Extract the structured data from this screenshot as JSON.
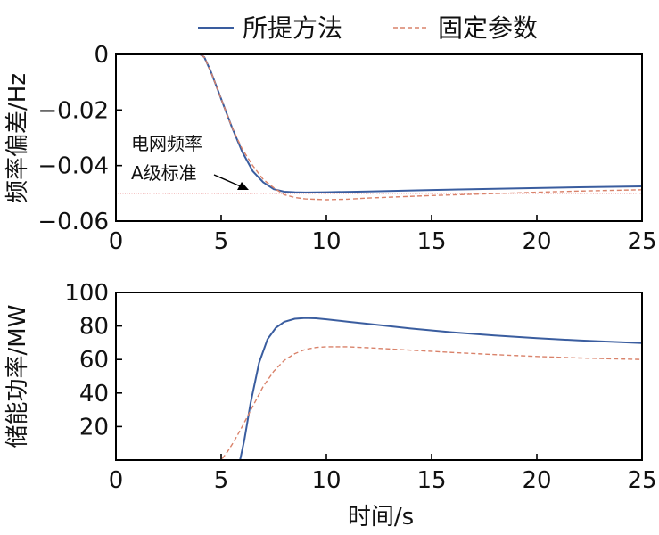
{
  "legend": [
    {
      "name": "所提方法",
      "color": "#3a5d9f",
      "dash": "solid"
    },
    {
      "name": "固定参数",
      "color": "#d9826a",
      "dash": "dashed"
    }
  ],
  "x_axis_label": "时间/s",
  "annotation": {
    "line1": "电网频率",
    "line2": "A级标准"
  },
  "colors": {
    "series1": "#3a5d9f",
    "series2": "#d9826a",
    "reference": "#e46a6a"
  },
  "chart_data": [
    {
      "type": "line",
      "ylabel": "频率偏差/Hz",
      "xlabel": "",
      "xlim": [
        0,
        25
      ],
      "ylim": [
        -0.06,
        0
      ],
      "x_ticks": [
        0,
        5,
        10,
        15,
        20,
        25
      ],
      "y_ticks": [
        0,
        -0.02,
        -0.04,
        -0.06
      ],
      "y_tick_labels": [
        "0",
        "−0.02",
        "−0.04",
        "−0.06"
      ],
      "reference_line": {
        "y": -0.05,
        "label": "电网频率 A级标准"
      },
      "series": [
        {
          "name": "所提方法",
          "x": [
            0,
            4,
            4.2,
            4.5,
            5,
            5.5,
            6,
            6.5,
            7,
            7.5,
            8,
            8.5,
            9,
            10,
            12,
            15,
            18,
            20,
            22,
            25
          ],
          "y": [
            0,
            0,
            -0.001,
            -0.006,
            -0.016,
            -0.026,
            -0.035,
            -0.042,
            -0.046,
            -0.0485,
            -0.0494,
            -0.0496,
            -0.0497,
            -0.0496,
            -0.0493,
            -0.0488,
            -0.0484,
            -0.0481,
            -0.0478,
            -0.0475
          ]
        },
        {
          "name": "固定参数",
          "x": [
            0,
            4,
            4.2,
            4.5,
            5,
            5.5,
            6,
            6.5,
            7,
            7.5,
            8,
            8.5,
            9,
            10,
            11,
            12,
            15,
            18,
            20,
            22,
            25
          ],
          "y": [
            0,
            0,
            -0.001,
            -0.006,
            -0.016,
            -0.026,
            -0.034,
            -0.04,
            -0.045,
            -0.048,
            -0.0505,
            -0.0515,
            -0.052,
            -0.0523,
            -0.0521,
            -0.0517,
            -0.0508,
            -0.0501,
            -0.0496,
            -0.0492,
            -0.0487
          ]
        }
      ]
    },
    {
      "type": "line",
      "ylabel": "储能功率/MW",
      "xlabel": "时间/s",
      "xlim": [
        0,
        25
      ],
      "ylim": [
        0,
        100
      ],
      "x_ticks": [
        0,
        5,
        10,
        15,
        20,
        25
      ],
      "y_ticks": [
        20,
        40,
        60,
        80,
        100
      ],
      "y_tick_labels": [
        "20",
        "40",
        "60",
        "80",
        "100"
      ],
      "series": [
        {
          "name": "所提方法",
          "x": [
            0,
            5.9,
            6.1,
            6.4,
            6.8,
            7.2,
            7.6,
            8,
            8.5,
            9,
            9.5,
            10,
            11,
            12,
            14,
            16,
            18,
            20,
            22,
            25
          ],
          "y": [
            0,
            0,
            12,
            34,
            58,
            72,
            79,
            82.5,
            84.3,
            84.8,
            84.6,
            84,
            82.6,
            81.2,
            78.5,
            76.2,
            74.3,
            72.7,
            71.4,
            69.8
          ]
        },
        {
          "name": "固定参数",
          "x": [
            0,
            5,
            5.3,
            5.6,
            6,
            6.5,
            7,
            7.5,
            8,
            8.5,
            9,
            9.5,
            10,
            11,
            12,
            14,
            16,
            18,
            20,
            22,
            25
          ],
          "y": [
            0,
            0,
            5,
            11,
            20,
            32,
            44,
            53,
            59.5,
            63.5,
            66,
            67.2,
            67.6,
            67.6,
            67,
            65.6,
            64.2,
            62.9,
            61.8,
            60.9,
            60
          ]
        }
      ]
    }
  ]
}
